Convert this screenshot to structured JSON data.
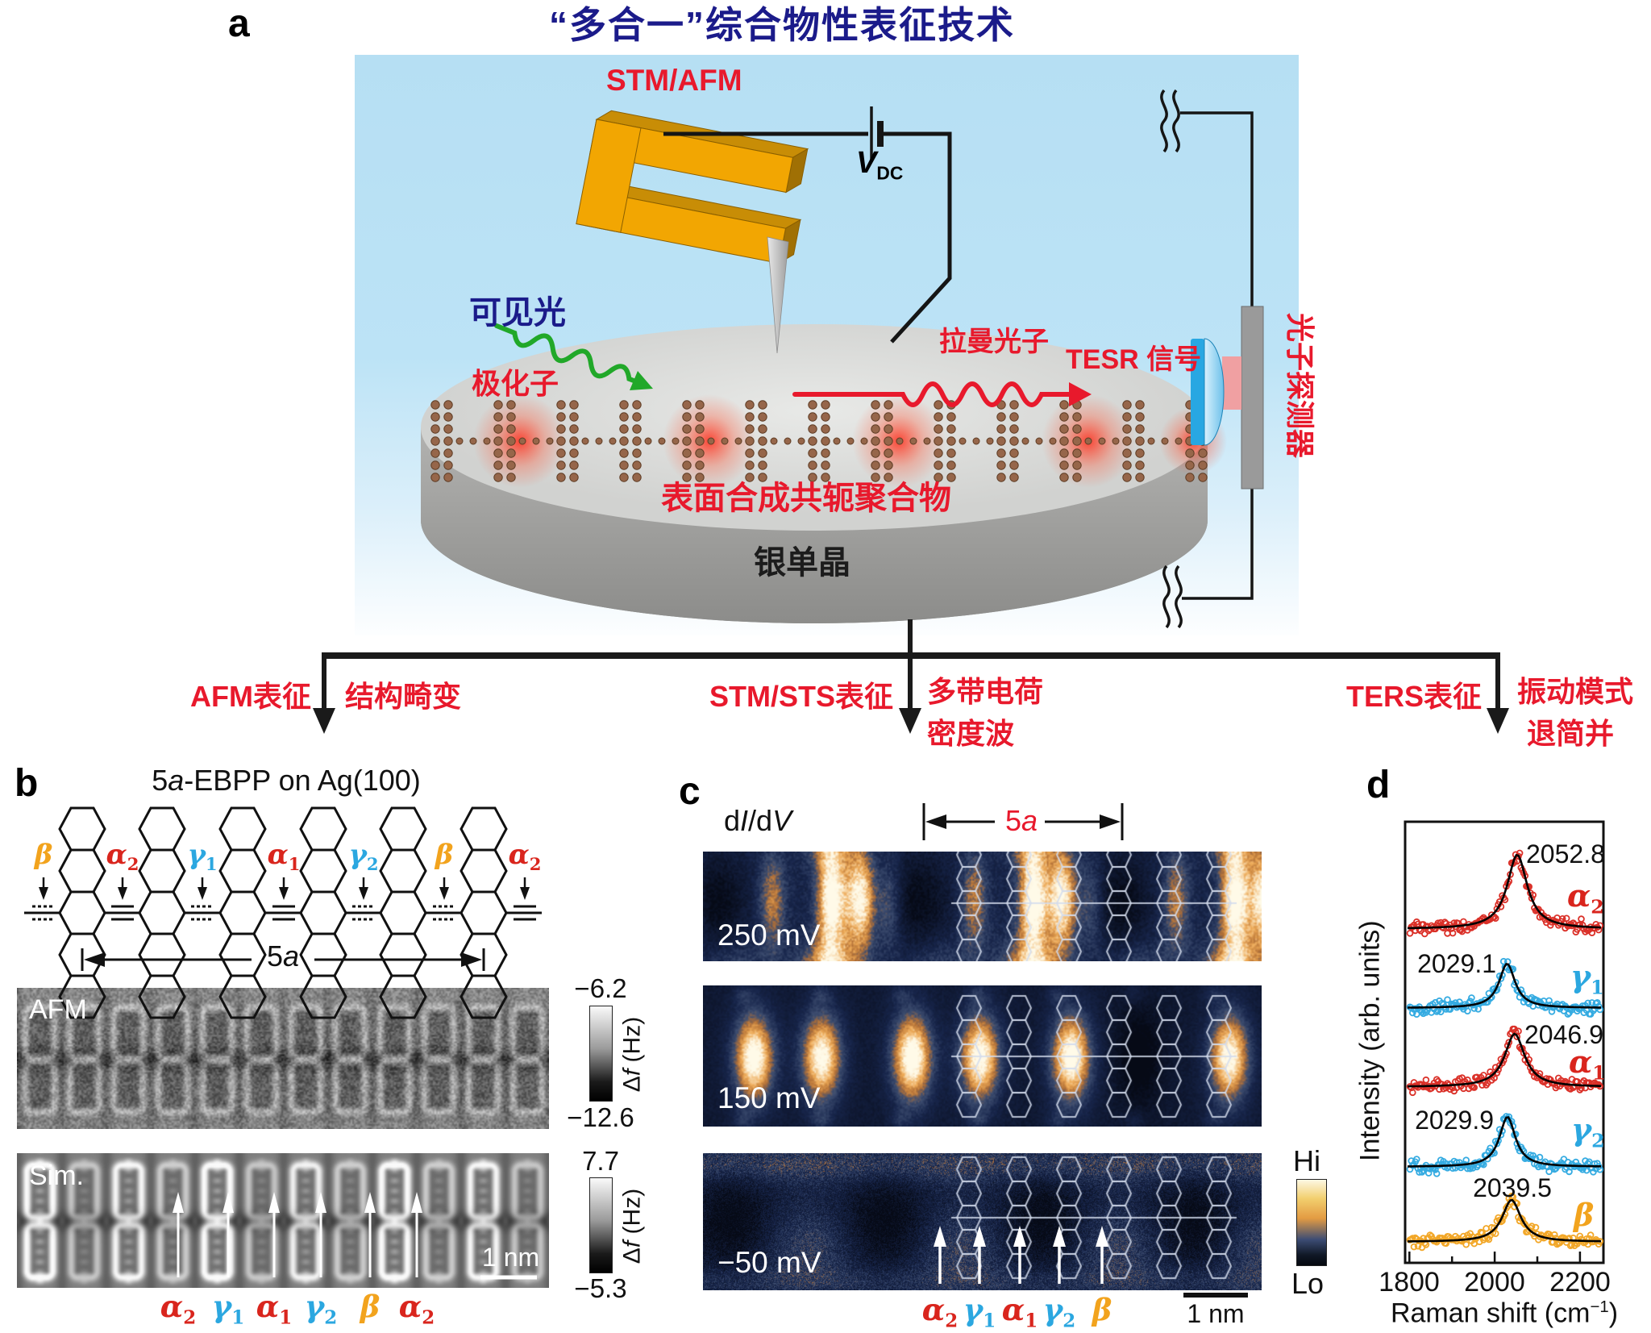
{
  "title": "“多合一”综合物性表征技术",
  "colors": {
    "red": "#e8192c",
    "data_red": "#d9251d",
    "blue": "#2ba7e0",
    "orange": "#f2a31d",
    "navy": "#1b1b8a",
    "green": "#21a829"
  },
  "panel_a": {
    "label": "a",
    "probe": "STM/AFM",
    "vdc": {
      "v": "V",
      "sub": "DC"
    },
    "visible_light": "可见光",
    "polaron": "极化子",
    "raman_photon": "拉曼光子",
    "tesr": "TESR 信号",
    "detector": "光子探测器",
    "polymer": "表面合成共轭聚合物",
    "substrate": "银单晶"
  },
  "flow": {
    "branches": [
      {
        "technique": "AFM表征",
        "result1": "结构畸变",
        "result2": ""
      },
      {
        "technique": "STM/STS表征",
        "result1": "多带电荷",
        "result2": "密度波"
      },
      {
        "technique": "TERS表征",
        "result1": "振动模式",
        "result2": "退简并"
      }
    ]
  },
  "modes": {
    "alpha2": {
      "base": "α",
      "sub": "2"
    },
    "gamma1": {
      "base": "γ",
      "sub": "1"
    },
    "alpha1": {
      "base": "α",
      "sub": "1"
    },
    "gamma2": {
      "base": "γ",
      "sub": "2"
    },
    "beta": {
      "base": "β",
      "sub": ""
    }
  },
  "panel_b": {
    "label": "b",
    "title": {
      "pre": "5",
      "it": "a",
      "post": "-EBPP on Ag(100)"
    },
    "span": {
      "pre": "5",
      "it": "a"
    },
    "afm_label": "AFM",
    "sim_label": "Sim.",
    "afm_scale": {
      "top": "−6.2",
      "bottom": "−12.6"
    },
    "sim_scale": {
      "top": "7.7",
      "bottom": "−5.3"
    },
    "scale_unit": {
      "pre": "Δ",
      "it": "f",
      "post": " (Hz)"
    },
    "scalebar": "1 nm"
  },
  "panel_c": {
    "label": "c",
    "signal": {
      "p1": "d",
      "i1": "I",
      "p2": "/d",
      "i2": "V"
    },
    "span": {
      "pre": "5",
      "it": "a"
    },
    "maps": [
      {
        "bias": "250 mV"
      },
      {
        "bias": "150 mV"
      },
      {
        "bias": "−50 mV"
      }
    ],
    "colorbar": {
      "hi": "Hi",
      "lo": "Lo"
    },
    "scalebar": "1 nm"
  },
  "panel_d": {
    "label": "d",
    "ylabel": "Intensity (arb. units)",
    "xlabel": {
      "pre": "Raman shift (cm",
      "sup": "−1",
      "post": ")"
    }
  },
  "chart_data": {
    "type": "scatter",
    "xlabel": "Raman shift (cm−1)",
    "ylabel": "Intensity (arb. units)",
    "xlim": [
      1790,
      2255
    ],
    "xticks": [
      1800,
      2000,
      2200
    ],
    "x_minor_ticks": [
      1900,
      2100
    ],
    "grid": false,
    "legend_position": "right-inline",
    "presentation": "five stacked offset TERS spectra: open-circle scatter with black Lorentzian fits",
    "series": [
      {
        "name": "α2",
        "peak": 2052.8,
        "color": "#d9251d"
      },
      {
        "name": "γ1",
        "peak": 2029.1,
        "color": "#2ba7e0"
      },
      {
        "name": "α1",
        "peak": 2046.9,
        "color": "#d9251d"
      },
      {
        "name": "γ2",
        "peak": 2029.9,
        "color": "#2ba7e0"
      },
      {
        "name": "β",
        "peak": 2039.5,
        "color": "#f2a31d"
      }
    ]
  }
}
